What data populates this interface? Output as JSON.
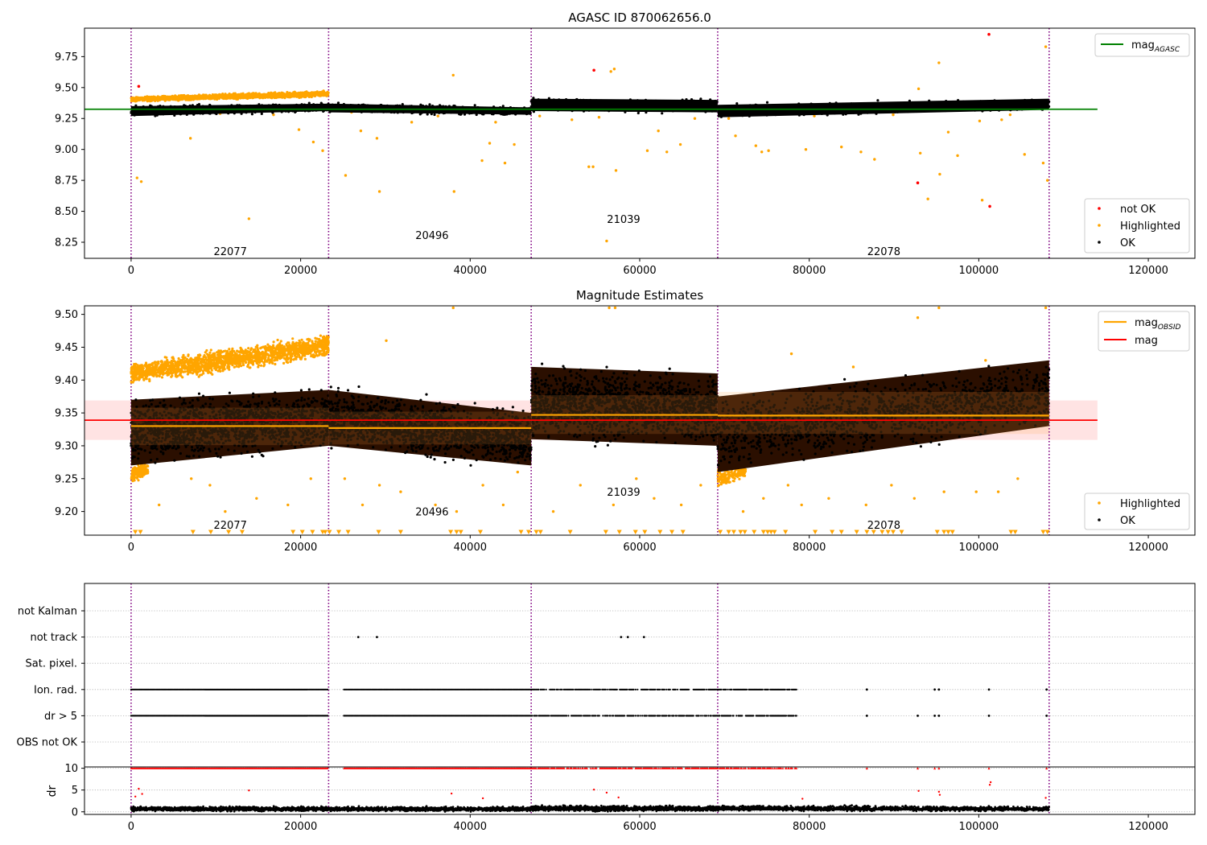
{
  "colors": {
    "ok": "#000000",
    "highlighted": "#ffa500",
    "not_ok": "#ff0000",
    "obsid_line": "#ffa500",
    "mag_line": "#ff0000",
    "agasc_line": "#008000",
    "boundary": "#800080",
    "mag_band": "#ffc0c0"
  },
  "chart_data": [
    {
      "name": "top",
      "type": "scatter",
      "title": "AGASC ID 870062656.0",
      "xlabel": "",
      "ylabel": "",
      "xlim": [
        -5500,
        125500
      ],
      "ylim": [
        8.12,
        9.98
      ],
      "xticks": [
        0,
        20000,
        40000,
        60000,
        80000,
        100000,
        120000
      ],
      "xtick_labels": [
        "0",
        "20000",
        "40000",
        "60000",
        "80000",
        "100000",
        "120000"
      ],
      "yticks": [
        8.25,
        8.5,
        8.75,
        9.0,
        9.25,
        9.5,
        9.75
      ],
      "ytick_labels": [
        "8.25",
        "8.50",
        "8.75",
        "9.00",
        "9.25",
        "9.50",
        "9.75"
      ],
      "obsid_boundaries": [
        0,
        23300,
        47200,
        69200,
        108300
      ],
      "obsid_labels": [
        {
          "text": "22077",
          "x": 11700,
          "y": 8.18
        },
        {
          "text": "20496",
          "x": 35500,
          "y": 8.31
        },
        {
          "text": "21039",
          "x": 58100,
          "y": 8.44
        },
        {
          "text": "22078",
          "x": 88800,
          "y": 8.18
        }
      ],
      "mag_agasc": {
        "value": 9.325,
        "x_range": [
          -5500,
          114000
        ]
      },
      "legend_top": {
        "position": "upper right",
        "entries": [
          {
            "label": "mag",
            "sub": "AGASC"
          }
        ]
      },
      "legend_bottom": {
        "position": "lower right",
        "entries": [
          "not OK",
          "Highlighted",
          "OK"
        ]
      },
      "ok_bands": [
        {
          "x": [
            0,
            23300
          ],
          "lo_start": 9.27,
          "lo_end": 9.31,
          "hi_start": 9.35,
          "hi_end": 9.37
        },
        {
          "x": [
            23300,
            47200
          ],
          "lo_start": 9.3,
          "lo_end": 9.28,
          "hi_start": 9.37,
          "hi_end": 9.34
        },
        {
          "x": [
            47200,
            69200
          ],
          "lo_start": 9.31,
          "lo_end": 9.3,
          "hi_start": 9.41,
          "hi_end": 9.4
        },
        {
          "x": [
            69200,
            108300
          ],
          "lo_start": 9.26,
          "lo_end": 9.32,
          "hi_start": 9.36,
          "hi_end": 9.41
        }
      ],
      "highlighted_bands": [
        {
          "x": [
            0,
            23300
          ],
          "lo_start": 9.38,
          "lo_end": 9.42,
          "hi_start": 9.43,
          "hi_end": 9.48
        }
      ],
      "highlighted_points": [
        [
          700,
          8.77
        ],
        [
          1200,
          8.74
        ],
        [
          7000,
          9.09
        ],
        [
          13900,
          8.44
        ],
        [
          19800,
          9.16
        ],
        [
          21500,
          9.06
        ],
        [
          22600,
          8.99
        ],
        [
          25300,
          8.79
        ],
        [
          27100,
          9.15
        ],
        [
          29000,
          9.09
        ],
        [
          29300,
          8.66
        ],
        [
          33100,
          9.22
        ],
        [
          38000,
          9.6
        ],
        [
          38100,
          8.66
        ],
        [
          41400,
          8.91
        ],
        [
          42300,
          9.05
        ],
        [
          43000,
          9.22
        ],
        [
          44100,
          8.89
        ],
        [
          45200,
          9.04
        ],
        [
          48200,
          9.27
        ],
        [
          54000,
          8.86
        ],
        [
          54500,
          8.86
        ],
        [
          55200,
          9.26
        ],
        [
          56100,
          8.26
        ],
        [
          56600,
          9.63
        ],
        [
          57000,
          9.65
        ],
        [
          57200,
          8.83
        ],
        [
          60900,
          8.99
        ],
        [
          62200,
          9.15
        ],
        [
          63200,
          8.98
        ],
        [
          64800,
          9.04
        ],
        [
          66500,
          9.25
        ],
        [
          71300,
          9.11
        ],
        [
          73700,
          9.03
        ],
        [
          74400,
          8.98
        ],
        [
          75200,
          8.99
        ],
        [
          79600,
          9.0
        ],
        [
          83800,
          9.02
        ],
        [
          86100,
          8.98
        ],
        [
          87700,
          8.92
        ],
        [
          92900,
          9.49
        ],
        [
          93100,
          8.97
        ],
        [
          94000,
          8.6
        ],
        [
          95300,
          9.7
        ],
        [
          95400,
          8.8
        ],
        [
          96400,
          9.14
        ],
        [
          97500,
          8.95
        ],
        [
          100100,
          9.23
        ],
        [
          100400,
          8.59
        ],
        [
          102700,
          9.24
        ],
        [
          103700,
          9.28
        ],
        [
          105400,
          8.96
        ],
        [
          107900,
          9.83
        ],
        [
          107600,
          8.89
        ],
        [
          108100,
          8.75
        ],
        [
          89900,
          9.28
        ],
        [
          70500,
          9.25
        ],
        [
          52000,
          9.24
        ],
        [
          16800,
          9.28
        ],
        [
          10500,
          9.29
        ],
        [
          36200,
          9.27
        ],
        [
          26000,
          9.3
        ],
        [
          80600,
          9.27
        ],
        [
          99000,
          9.34
        ]
      ],
      "not_ok_points": [
        [
          900,
          9.51
        ],
        [
          54600,
          9.64
        ],
        [
          92800,
          8.73
        ],
        [
          101200,
          9.93
        ],
        [
          101300,
          8.54
        ]
      ]
    },
    {
      "name": "middle",
      "type": "scatter",
      "title": "Magnitude Estimates",
      "xlabel": "",
      "ylabel": "",
      "xlim": [
        -5500,
        125500
      ],
      "ylim": [
        9.164,
        9.513
      ],
      "xticks": [
        0,
        20000,
        40000,
        60000,
        80000,
        100000,
        120000
      ],
      "xtick_labels": [
        "0",
        "20000",
        "40000",
        "60000",
        "80000",
        "100000",
        "120000"
      ],
      "yticks": [
        9.2,
        9.25,
        9.3,
        9.35,
        9.4,
        9.45,
        9.5
      ],
      "ytick_labels": [
        "9.20",
        "9.25",
        "9.30",
        "9.35",
        "9.40",
        "9.45",
        "9.50"
      ],
      "obsid_boundaries": [
        0,
        23300,
        47200,
        69200,
        108300
      ],
      "obsid_labels": [
        {
          "text": "22077",
          "x": 11700,
          "y": 9.18
        },
        {
          "text": "20496",
          "x": 35500,
          "y": 9.2
        },
        {
          "text": "21039",
          "x": 58100,
          "y": 9.23
        },
        {
          "text": "22078",
          "x": 88800,
          "y": 9.18
        }
      ],
      "mag": {
        "value": 9.339,
        "band": [
          9.309,
          9.369
        ],
        "x_range": [
          -5500,
          114000
        ]
      },
      "mag_obsid": [
        {
          "x": [
            0,
            23300
          ],
          "value": 9.33,
          "band": [
            9.301,
            9.358
          ]
        },
        {
          "x": [
            23300,
            47200
          ],
          "value": 9.327,
          "band": [
            9.302,
            9.352
          ]
        },
        {
          "x": [
            47200,
            69200
          ],
          "value": 9.347,
          "band": [
            9.318,
            9.377
          ]
        },
        {
          "x": [
            69200,
            108300
          ],
          "value": 9.346,
          "band": [
            9.318,
            9.382
          ]
        }
      ],
      "legend_top": {
        "position": "upper right",
        "entries": [
          {
            "label": "mag",
            "sub": "OBSID"
          },
          {
            "label": "mag",
            "sub": ""
          }
        ]
      },
      "legend_bottom": {
        "position": "lower right",
        "entries": [
          "Highlighted",
          "OK"
        ]
      },
      "ok_bands": [
        {
          "x": [
            0,
            23300
          ],
          "lo_start": 9.27,
          "lo_end": 9.3,
          "hi_start": 9.37,
          "hi_end": 9.385
        },
        {
          "x": [
            23300,
            47200
          ],
          "lo_start": 9.3,
          "lo_end": 9.27,
          "hi_start": 9.385,
          "hi_end": 9.35
        },
        {
          "x": [
            47200,
            69200
          ],
          "lo_start": 9.31,
          "lo_end": 9.3,
          "hi_start": 9.42,
          "hi_end": 9.41
        },
        {
          "x": [
            69200,
            108300
          ],
          "lo_start": 9.26,
          "lo_end": 9.33,
          "hi_start": 9.375,
          "hi_end": 9.43
        }
      ],
      "highlighted_bands": [
        {
          "x": [
            0,
            23300
          ],
          "lo_start": 9.39,
          "lo_end": 9.43,
          "hi_start": 9.43,
          "hi_end": 9.475
        }
      ],
      "highlighted_low_bands": [
        {
          "x": [
            0,
            2000
          ],
          "lo_start": 9.24,
          "lo_end": 9.25,
          "hi_start": 9.27,
          "hi_end": 9.28
        },
        {
          "x": [
            69200,
            72500
          ],
          "lo_start": 9.23,
          "lo_end": 9.25,
          "hi_start": 9.27,
          "hi_end": 9.27
        }
      ],
      "highlighted_points": [
        [
          3300,
          9.21
        ],
        [
          7100,
          9.25
        ],
        [
          9300,
          9.24
        ],
        [
          11100,
          9.2
        ],
        [
          14800,
          9.22
        ],
        [
          18500,
          9.21
        ],
        [
          21200,
          9.25
        ],
        [
          25200,
          9.25
        ],
        [
          27300,
          9.21
        ],
        [
          29300,
          9.24
        ],
        [
          31800,
          9.23
        ],
        [
          35900,
          9.21
        ],
        [
          38400,
          9.2
        ],
        [
          41500,
          9.24
        ],
        [
          43900,
          9.21
        ],
        [
          45600,
          9.26
        ],
        [
          49800,
          9.2
        ],
        [
          53000,
          9.24
        ],
        [
          56900,
          9.21
        ],
        [
          59600,
          9.25
        ],
        [
          61700,
          9.22
        ],
        [
          64900,
          9.21
        ],
        [
          67200,
          9.24
        ],
        [
          72200,
          9.2
        ],
        [
          74600,
          9.22
        ],
        [
          77500,
          9.24
        ],
        [
          79100,
          9.21
        ],
        [
          82300,
          9.22
        ],
        [
          86700,
          9.21
        ],
        [
          89700,
          9.24
        ],
        [
          92400,
          9.22
        ],
        [
          95900,
          9.23
        ],
        [
          99700,
          9.23
        ],
        [
          102300,
          9.23
        ],
        [
          104600,
          9.25
        ],
        [
          38000,
          9.51
        ],
        [
          56400,
          9.51
        ],
        [
          57100,
          9.51
        ],
        [
          95300,
          9.51
        ],
        [
          107900,
          9.51
        ],
        [
          92800,
          9.495
        ],
        [
          77900,
          9.44
        ],
        [
          30100,
          9.46
        ],
        [
          61500,
          9.41
        ],
        [
          85200,
          9.42
        ],
        [
          100800,
          9.43
        ]
      ],
      "clipped_low_points": [
        500,
        1100,
        7300,
        9400,
        11500,
        13100,
        19100,
        20200,
        21400,
        22600,
        22900,
        23400,
        24500,
        25600,
        29200,
        31800,
        37700,
        38400,
        38900,
        41200,
        46000,
        46900,
        47800,
        48300,
        51800,
        56000,
        57600,
        59500,
        60600,
        62400,
        63800,
        65100,
        69500,
        70500,
        71100,
        71900,
        72400,
        73500,
        74600,
        75100,
        75500,
        75900,
        77200,
        80700,
        82700,
        83800,
        85600,
        86800,
        87600,
        88600,
        89300,
        89900,
        90900,
        95100,
        95900,
        96400,
        96900,
        103800,
        104300,
        107600,
        108100
      ]
    },
    {
      "name": "flags",
      "type": "scatter",
      "title": "",
      "xlabel": "",
      "ylabel": "",
      "xlim": [
        -5500,
        125500
      ],
      "categories": [
        "not Kalman",
        "not track",
        "Sat. pixel.",
        "Ion. rad.",
        "dr > 5",
        "OBS not OK"
      ],
      "obsid_boundaries": [
        0,
        23300,
        47200,
        69200,
        108300
      ],
      "grid": true,
      "flag_dense_ranges": {
        "Ion. rad.": [
          [
            0,
            23300
          ],
          [
            25100,
            47200
          ],
          [
            47200,
            69200
          ],
          [
            69200,
            78600
          ]
        ],
        "dr > 5": [
          [
            0,
            23300
          ],
          [
            25100,
            47200
          ],
          [
            47200,
            69200
          ],
          [
            69200,
            78600
          ]
        ]
      },
      "flag_sparse_points": {
        "not track": [
          26800,
          29000,
          57800,
          58600,
          60500
        ],
        "Ion. rad.": [
          86800,
          94800,
          95300,
          101200,
          108000
        ],
        "dr > 5": [
          86800,
          92800,
          94800,
          95300,
          101200,
          108000
        ]
      }
    },
    {
      "name": "dr",
      "type": "scatter",
      "title": "",
      "xlabel": "",
      "ylabel": "dr",
      "xlim": [
        -5500,
        125500
      ],
      "ylim": [
        -0.6,
        10.3
      ],
      "xticks": [
        0,
        20000,
        40000,
        60000,
        80000,
        100000,
        120000
      ],
      "xtick_labels": [
        "0",
        "20000",
        "40000",
        "60000",
        "80000",
        "100000",
        "120000"
      ],
      "yticks": [
        0,
        5,
        10
      ],
      "ytick_labels": [
        "0",
        "5",
        "10"
      ],
      "obsid_boundaries": [
        0,
        23300,
        47200,
        69200,
        108300
      ],
      "grid": true,
      "dr_value": 10,
      "dr_dense_ranges": [
        [
          0,
          23300
        ],
        [
          25100,
          47200
        ],
        [
          47200,
          69200
        ],
        [
          69200,
          78600
        ]
      ],
      "dr_sparse_points": [
        86800,
        92800,
        94800,
        95300,
        101200,
        108000
      ],
      "dr_mid_points": [
        [
          500,
          3.5
        ],
        [
          900,
          5.3
        ],
        [
          1300,
          4.1
        ],
        [
          13900,
          4.9
        ],
        [
          37800,
          4.2
        ],
        [
          41500,
          3.1
        ],
        [
          54600,
          5.1
        ],
        [
          56100,
          4.4
        ],
        [
          57500,
          3.3
        ],
        [
          79200,
          3.0
        ],
        [
          92900,
          4.8
        ],
        [
          95300,
          4.6
        ],
        [
          95400,
          3.9
        ],
        [
          101300,
          6.2
        ],
        [
          101400,
          6.8
        ],
        [
          107900,
          3.2
        ]
      ]
    }
  ]
}
